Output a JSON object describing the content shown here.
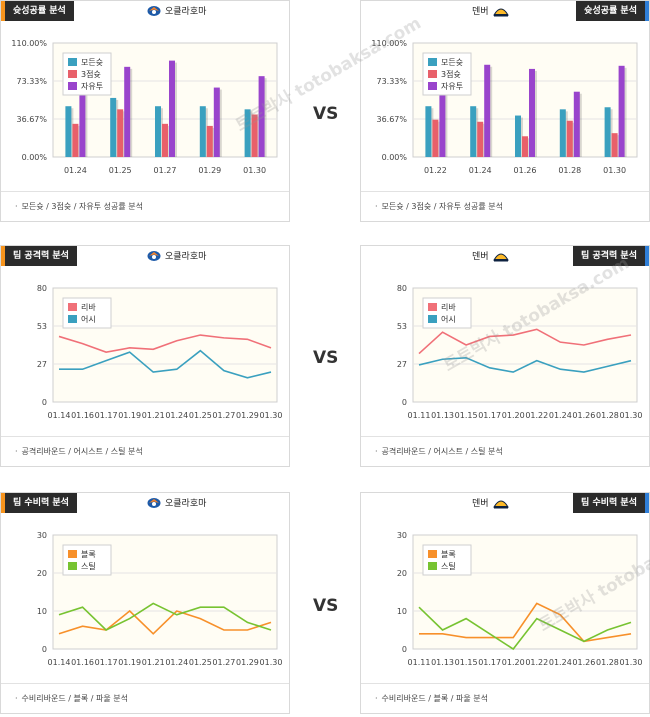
{
  "vs_label": "VS",
  "watermark": "토토박사 totobaksa.com",
  "sections": [
    {
      "title": "슛성공률 분석",
      "footer": "모든슛 / 3점슛 / 자유투 성공률 분석",
      "left": {
        "team": "오클라호마",
        "logo_icon": "okc-thunder-logo",
        "chart_data": {
          "type": "bar",
          "categories": [
            "01.24",
            "01.25",
            "01.27",
            "01.29",
            "01.30"
          ],
          "ylim": [
            0,
            110
          ],
          "yticks": [
            "0.00%",
            "36.67%",
            "73.33%",
            "110.00%"
          ],
          "series": [
            {
              "name": "모든슛",
              "color": "#3aa0bf",
              "values": [
                49,
                57,
                49,
                49,
                46
              ]
            },
            {
              "name": "3점슛",
              "color": "#e8606a",
              "values": [
                32,
                46,
                32,
                30,
                41
              ]
            },
            {
              "name": "자유투",
              "color": "#9944cc",
              "values": [
                92,
                87,
                93,
                67,
                78
              ]
            }
          ]
        }
      },
      "right": {
        "team": "덴버",
        "logo_icon": "denver-nuggets-logo",
        "chart_data": {
          "type": "bar",
          "categories": [
            "01.22",
            "01.24",
            "01.26",
            "01.28",
            "01.30"
          ],
          "ylim": [
            0,
            110
          ],
          "yticks": [
            "0.00%",
            "36.67%",
            "73.33%",
            "110.00%"
          ],
          "series": [
            {
              "name": "모든슛",
              "color": "#3aa0bf",
              "values": [
                49,
                49,
                40,
                46,
                48
              ]
            },
            {
              "name": "3점슛",
              "color": "#e8606a",
              "values": [
                36,
                34,
                20,
                35,
                23
              ]
            },
            {
              "name": "자유투",
              "color": "#9944cc",
              "values": [
                80,
                89,
                85,
                63,
                88
              ]
            }
          ]
        }
      }
    },
    {
      "title": "팀 공격력 분석",
      "footer": "공격리바운드 / 어시스트 / 스틸 분석",
      "left": {
        "team": "오클라호마",
        "logo_icon": "okc-thunder-logo",
        "chart_data": {
          "type": "line",
          "categories": [
            "01.14",
            "01.16",
            "01.17",
            "01.19",
            "01.21",
            "01.24",
            "01.25",
            "01.27",
            "01.29",
            "01.30"
          ],
          "ylim": [
            0,
            80
          ],
          "yticks": [
            "0",
            "27",
            "53",
            "80"
          ],
          "series": [
            {
              "name": "리바",
              "color": "#f07078",
              "values": [
                46,
                41,
                35,
                38,
                37,
                43,
                47,
                45,
                44,
                38
              ]
            },
            {
              "name": "어시",
              "color": "#3aa0bf",
              "values": [
                23,
                23,
                29,
                35,
                21,
                23,
                36,
                22,
                17,
                21
              ]
            }
          ]
        }
      },
      "right": {
        "team": "덴버",
        "logo_icon": "denver-nuggets-logo",
        "chart_data": {
          "type": "line",
          "categories": [
            "01.11",
            "01.13",
            "01.15",
            "01.17",
            "01.20",
            "01.22",
            "01.24",
            "01.26",
            "01.28",
            "01.30"
          ],
          "ylim": [
            0,
            80
          ],
          "yticks": [
            "0",
            "27",
            "53",
            "80"
          ],
          "series": [
            {
              "name": "리바",
              "color": "#f07078",
              "values": [
                34,
                49,
                40,
                46,
                47,
                51,
                42,
                40,
                44,
                47
              ]
            },
            {
              "name": "어시",
              "color": "#3aa0bf",
              "values": [
                26,
                30,
                31,
                24,
                21,
                29,
                23,
                21,
                25,
                29
              ]
            }
          ]
        }
      }
    },
    {
      "title": "팀 수비력 분석",
      "footer": "수비리바운드 / 블록 / 파울 분석",
      "left": {
        "team": "오클라호마",
        "logo_icon": "okc-thunder-logo",
        "chart_data": {
          "type": "line",
          "categories": [
            "01.14",
            "01.16",
            "01.17",
            "01.19",
            "01.21",
            "01.24",
            "01.25",
            "01.27",
            "01.29",
            "01.30"
          ],
          "ylim": [
            0,
            30
          ],
          "yticks": [
            "0",
            "10",
            "20",
            "30"
          ],
          "series": [
            {
              "name": "블록",
              "color": "#f7902a",
              "values": [
                4,
                6,
                5,
                10,
                4,
                10,
                8,
                5,
                5,
                7
              ]
            },
            {
              "name": "스틸",
              "color": "#77c331",
              "values": [
                9,
                11,
                5,
                8,
                12,
                9,
                11,
                11,
                7,
                5
              ]
            }
          ]
        }
      },
      "right": {
        "team": "덴버",
        "logo_icon": "denver-nuggets-logo",
        "chart_data": {
          "type": "line",
          "categories": [
            "01.11",
            "01.13",
            "01.15",
            "01.17",
            "01.20",
            "01.22",
            "01.24",
            "01.26",
            "01.28",
            "01.30"
          ],
          "ylim": [
            0,
            30
          ],
          "yticks": [
            "0",
            "10",
            "20",
            "30"
          ],
          "series": [
            {
              "name": "블록",
              "color": "#f7902a",
              "values": [
                4,
                4,
                3,
                3,
                3,
                12,
                9,
                2,
                3,
                4
              ]
            },
            {
              "name": "스틸",
              "color": "#77c331",
              "values": [
                11,
                5,
                8,
                4,
                0,
                8,
                5,
                2,
                5,
                7
              ]
            }
          ]
        }
      }
    }
  ]
}
